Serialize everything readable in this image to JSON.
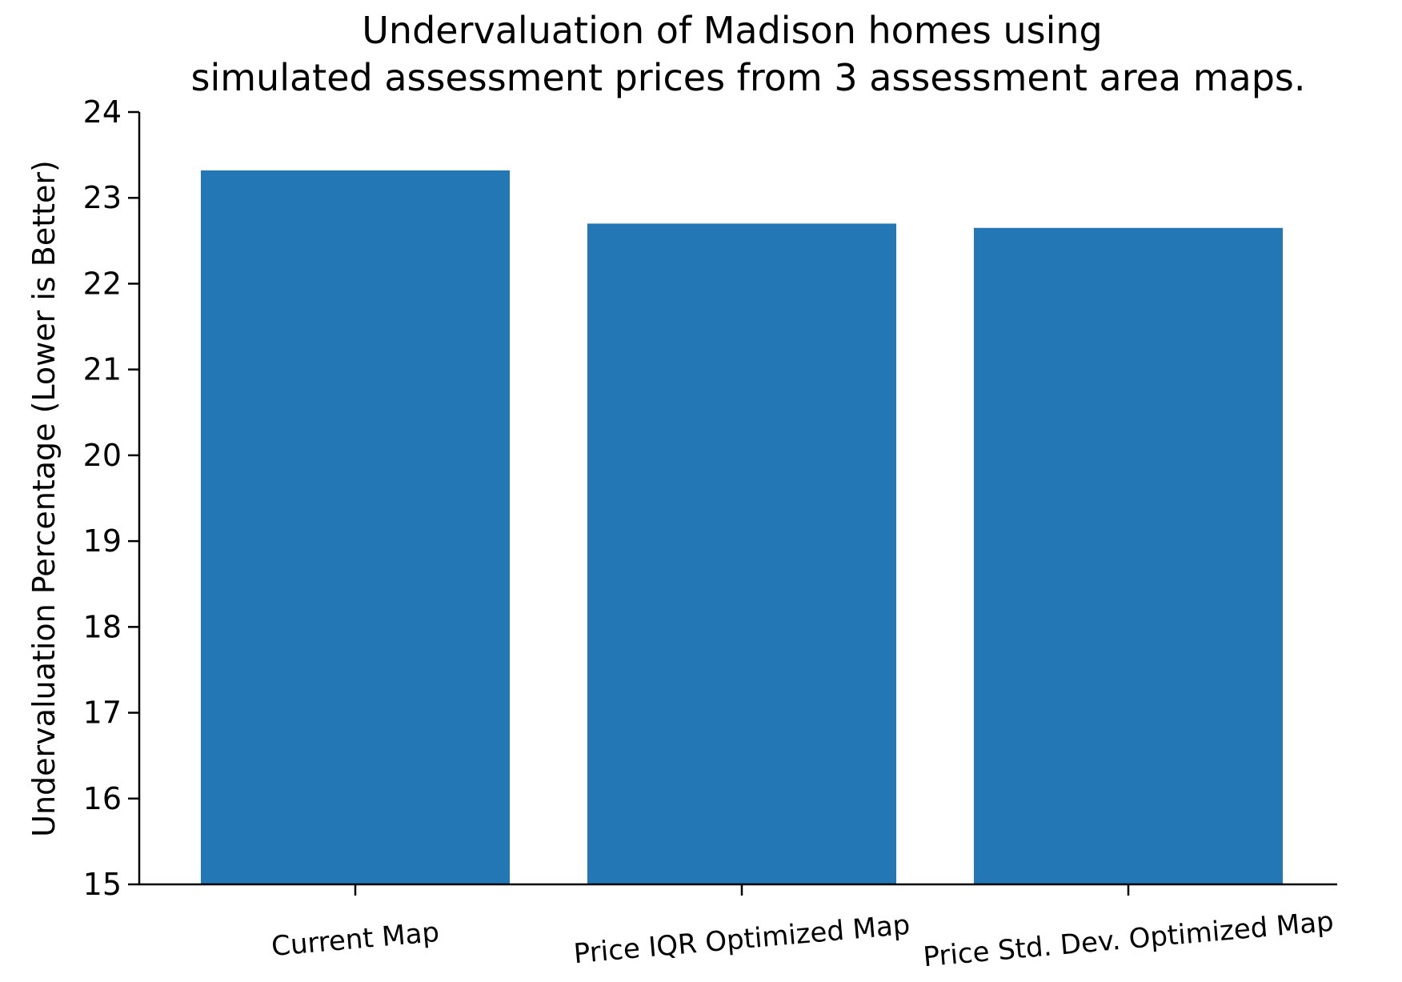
{
  "chart_data": {
    "type": "bar",
    "title_line1": "Undervaluation of Madison homes using",
    "title_line2": "simulated assessment prices from 3 assessment area maps.",
    "xlabel": "",
    "ylabel": "Undervaluation Percentage (Lower is Better)",
    "categories": [
      "Current Map",
      "Price IQR Optimized Map",
      "Price Std. Dev. Optimized Map"
    ],
    "values": [
      23.32,
      22.7,
      22.65
    ],
    "ylim": [
      15,
      24
    ],
    "yticks": [
      "15",
      "16",
      "17",
      "18",
      "19",
      "20",
      "21",
      "22",
      "23",
      "24"
    ],
    "grid": false,
    "bar_color": "#2277b4",
    "xtick_rotation_degrees": 5
  }
}
